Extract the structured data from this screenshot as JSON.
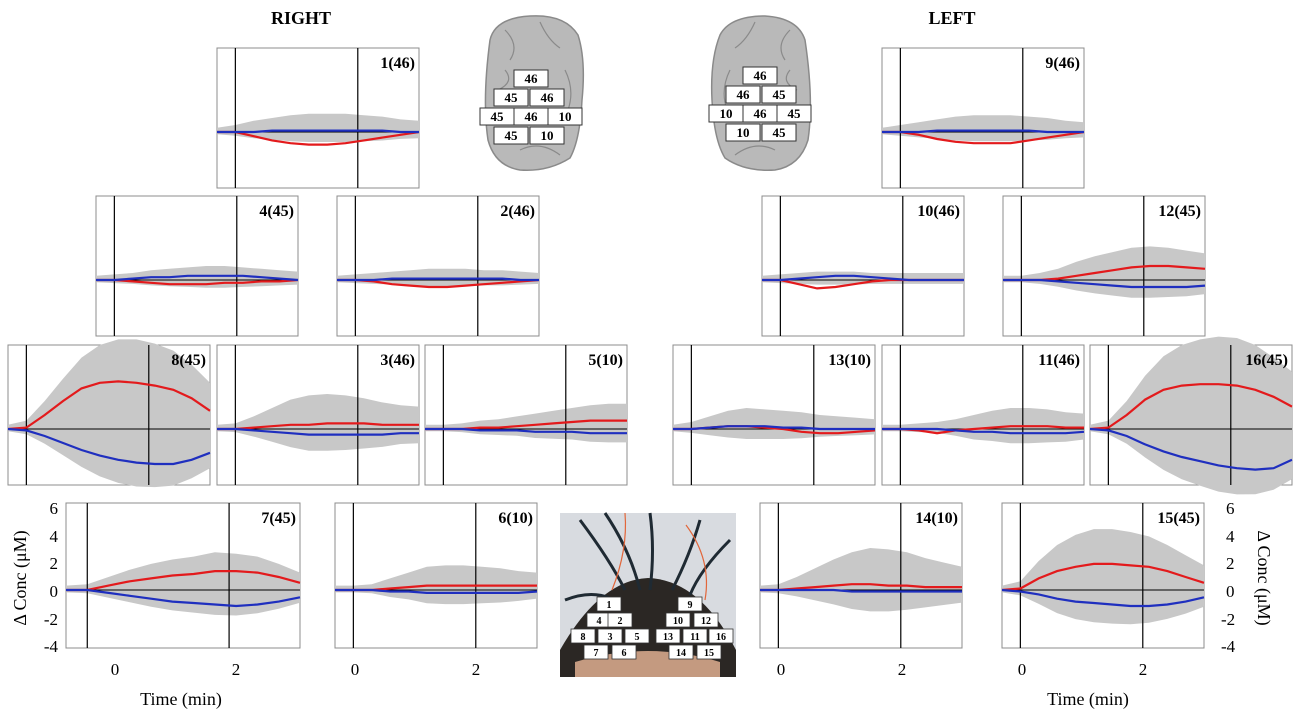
{
  "headers": {
    "right": "RIGHT",
    "left": "LEFT"
  },
  "axes": {
    "xlabel": "Time (min)",
    "ylabel": "Δ Conc (μM)",
    "xticks": [
      "0",
      "2"
    ],
    "yticks": [
      "6",
      "4",
      "2",
      "0",
      "-2",
      "-4"
    ],
    "xlim": [
      -0.3,
      3.0
    ],
    "ylim": [
      -4,
      6
    ]
  },
  "brain_right_labels": [
    "46",
    "45",
    "46",
    "45",
    "46",
    "10",
    "45",
    "10"
  ],
  "brain_left_labels": [
    "46",
    "46",
    "45",
    "10",
    "46",
    "45",
    "10",
    "45"
  ],
  "headset_labels": [
    "1",
    "9",
    "4",
    "2",
    "10",
    "12",
    "8",
    "3",
    "5",
    "13",
    "11",
    "16",
    "7",
    "6",
    "14",
    "15"
  ],
  "colors": {
    "hbo": "#e31a1c",
    "hbr": "#1f2fbf",
    "band": "#c8c8c8",
    "axis": "#000000"
  },
  "chart_data": {
    "type": "line",
    "x": [
      -0.3,
      0,
      0.3,
      0.6,
      0.9,
      1.2,
      1.5,
      1.8,
      2.1,
      2.4,
      2.7,
      3.0
    ],
    "panels": [
      {
        "title": "1(46)",
        "hbo": [
          0,
          0,
          -0.3,
          -0.6,
          -0.8,
          -0.9,
          -0.9,
          -0.8,
          -0.6,
          -0.4,
          -0.2,
          0
        ],
        "hbr": [
          0,
          0,
          0,
          0.1,
          0.1,
          0.1,
          0.1,
          0.1,
          0.1,
          0.1,
          0,
          0
        ],
        "band": [
          0.3,
          0.5,
          0.8,
          1.0,
          1.2,
          1.3,
          1.3,
          1.3,
          1.2,
          1.1,
          0.9,
          0.8
        ]
      },
      {
        "title": "9(46)",
        "hbo": [
          0,
          0,
          -0.2,
          -0.5,
          -0.7,
          -0.8,
          -0.8,
          -0.8,
          -0.6,
          -0.4,
          -0.2,
          0
        ],
        "hbr": [
          0,
          0,
          0,
          0.1,
          0.1,
          0.1,
          0.1,
          0.1,
          0.1,
          0,
          0,
          0
        ],
        "band": [
          0.3,
          0.5,
          0.7,
          0.9,
          1.1,
          1.2,
          1.2,
          1.2,
          1.1,
          1.0,
          0.8,
          0.7
        ]
      },
      {
        "title": "4(45)",
        "hbo": [
          0,
          0,
          -0.1,
          -0.2,
          -0.3,
          -0.3,
          -0.3,
          -0.2,
          -0.2,
          -0.1,
          -0.1,
          0
        ],
        "hbr": [
          0,
          0,
          0.1,
          0.2,
          0.2,
          0.3,
          0.3,
          0.3,
          0.3,
          0.2,
          0.1,
          0
        ],
        "band": [
          0.3,
          0.4,
          0.5,
          0.7,
          0.8,
          0.9,
          1.0,
          1.0,
          0.9,
          0.8,
          0.7,
          0.6
        ]
      },
      {
        "title": "2(46)",
        "hbo": [
          0,
          0,
          -0.1,
          -0.3,
          -0.4,
          -0.5,
          -0.5,
          -0.4,
          -0.3,
          -0.2,
          -0.1,
          0
        ],
        "hbr": [
          0,
          0,
          0,
          0.1,
          0.1,
          0.1,
          0.1,
          0.1,
          0.1,
          0.1,
          0,
          0
        ],
        "band": [
          0.3,
          0.4,
          0.5,
          0.6,
          0.7,
          0.8,
          0.8,
          0.8,
          0.7,
          0.7,
          0.6,
          0.5
        ]
      },
      {
        "title": "10(46)",
        "hbo": [
          0,
          0,
          -0.3,
          -0.6,
          -0.5,
          -0.3,
          -0.1,
          0,
          0,
          0,
          0,
          0
        ],
        "hbr": [
          0,
          0,
          0.1,
          0.2,
          0.3,
          0.3,
          0.2,
          0.1,
          0,
          0,
          0,
          0
        ],
        "band": [
          0.3,
          0.4,
          0.5,
          0.6,
          0.6,
          0.6,
          0.5,
          0.5,
          0.5,
          0.5,
          0.5,
          0.5
        ]
      },
      {
        "title": "12(45)",
        "hbo": [
          0,
          0,
          0,
          0.1,
          0.3,
          0.5,
          0.7,
          0.9,
          1.0,
          1.0,
          0.9,
          0.8
        ],
        "hbr": [
          0,
          0,
          0,
          -0.1,
          -0.2,
          -0.3,
          -0.4,
          -0.5,
          -0.5,
          -0.5,
          -0.5,
          -0.4
        ],
        "band": [
          0.3,
          0.3,
          0.5,
          0.7,
          1.0,
          1.2,
          1.3,
          1.4,
          1.4,
          1.3,
          1.2,
          1.1
        ]
      },
      {
        "title": "8(45)",
        "hbo": [
          0,
          0.1,
          1.0,
          2.0,
          2.9,
          3.3,
          3.4,
          3.3,
          3.1,
          2.8,
          2.2,
          1.3
        ],
        "hbr": [
          0,
          -0.1,
          -0.5,
          -1.0,
          -1.5,
          -1.9,
          -2.2,
          -2.4,
          -2.5,
          -2.5,
          -2.2,
          -1.7
        ],
        "band": [
          0.3,
          0.5,
          1.0,
          1.6,
          2.2,
          2.7,
          3.0,
          3.1,
          3.0,
          2.8,
          2.4,
          2.0
        ]
      },
      {
        "title": "3(46)",
        "hbo": [
          0,
          0,
          0.1,
          0.2,
          0.3,
          0.3,
          0.4,
          0.4,
          0.4,
          0.3,
          0.3,
          0.3
        ],
        "hbr": [
          0,
          0,
          -0.1,
          -0.2,
          -0.3,
          -0.4,
          -0.4,
          -0.4,
          -0.4,
          -0.4,
          -0.3,
          -0.3
        ],
        "band": [
          0.3,
          0.4,
          0.8,
          1.3,
          1.8,
          2.1,
          2.1,
          2.0,
          1.8,
          1.6,
          1.4,
          1.3
        ]
      },
      {
        "title": "5(10)",
        "hbo": [
          0,
          0,
          0,
          0.1,
          0.1,
          0.2,
          0.3,
          0.4,
          0.5,
          0.6,
          0.6,
          0.6
        ],
        "hbr": [
          0,
          0,
          0,
          -0.1,
          -0.1,
          -0.1,
          -0.2,
          -0.2,
          -0.2,
          -0.3,
          -0.3,
          -0.3
        ],
        "band": [
          0.3,
          0.3,
          0.4,
          0.5,
          0.6,
          0.7,
          0.8,
          0.9,
          1.0,
          1.1,
          1.2,
          1.2
        ]
      },
      {
        "title": "13(10)",
        "hbo": [
          0,
          0,
          0.1,
          0.2,
          0.2,
          0.1,
          0,
          -0.2,
          -0.3,
          -0.3,
          -0.2,
          -0.1
        ],
        "hbr": [
          0,
          0,
          0.1,
          0.2,
          0.2,
          0.2,
          0.1,
          0.1,
          0,
          0,
          0,
          0
        ],
        "band": [
          0.3,
          0.5,
          0.8,
          1.1,
          1.3,
          1.3,
          1.3,
          1.2,
          1.0,
          0.9,
          0.8,
          0.7
        ]
      },
      {
        "title": "11(46)",
        "hbo": [
          0,
          0,
          -0.1,
          -0.3,
          -0.1,
          0,
          0.1,
          0.2,
          0.2,
          0.2,
          0.1,
          0.1
        ],
        "hbr": [
          0,
          0,
          0,
          0,
          -0.1,
          -0.2,
          -0.2,
          -0.3,
          -0.3,
          -0.3,
          -0.3,
          -0.2
        ],
        "band": [
          0.3,
          0.3,
          0.4,
          0.5,
          0.7,
          1.0,
          1.2,
          1.3,
          1.3,
          1.2,
          1.1,
          1.0
        ]
      },
      {
        "title": "16(45)",
        "hbo": [
          0,
          0.1,
          1.0,
          2.1,
          2.8,
          3.1,
          3.2,
          3.2,
          3.1,
          2.8,
          2.3,
          1.6
        ],
        "hbr": [
          0,
          -0.1,
          -0.5,
          -1.1,
          -1.6,
          -2.0,
          -2.3,
          -2.6,
          -2.8,
          -2.9,
          -2.8,
          -2.2
        ],
        "band": [
          0.3,
          0.5,
          1.0,
          1.7,
          2.4,
          2.9,
          3.2,
          3.4,
          3.4,
          3.2,
          2.8,
          2.5
        ]
      },
      {
        "title": "7(45)",
        "hbo": [
          0,
          0,
          0.3,
          0.6,
          0.8,
          1.0,
          1.1,
          1.3,
          1.3,
          1.2,
          0.9,
          0.5
        ],
        "hbr": [
          0,
          0,
          -0.2,
          -0.4,
          -0.6,
          -0.8,
          -0.9,
          -1.0,
          -1.1,
          -1.0,
          -0.8,
          -0.5
        ],
        "band": [
          0.3,
          0.4,
          0.6,
          0.8,
          1.0,
          1.1,
          1.2,
          1.3,
          1.2,
          1.1,
          0.9,
          0.7
        ]
      },
      {
        "title": "6(10)",
        "hbo": [
          0,
          0,
          0,
          0.1,
          0.2,
          0.3,
          0.3,
          0.3,
          0.3,
          0.3,
          0.3,
          0.3
        ],
        "hbr": [
          0,
          0,
          0,
          -0.1,
          -0.1,
          -0.2,
          -0.2,
          -0.2,
          -0.2,
          -0.2,
          -0.2,
          -0.1
        ],
        "band": [
          0.3,
          0.3,
          0.4,
          0.7,
          1.0,
          1.3,
          1.4,
          1.4,
          1.3,
          1.2,
          1.0,
          0.9
        ]
      },
      {
        "title": "14(10)",
        "hbo": [
          0,
          0,
          0.1,
          0.2,
          0.3,
          0.4,
          0.4,
          0.3,
          0.3,
          0.2,
          0.2,
          0.2
        ],
        "hbr": [
          0,
          0,
          0,
          0,
          0,
          -0.1,
          -0.1,
          -0.1,
          -0.1,
          -0.1,
          -0.1,
          -0.1
        ],
        "band": [
          0.3,
          0.4,
          0.8,
          1.3,
          1.8,
          2.2,
          2.5,
          2.5,
          2.3,
          2.0,
          1.7,
          1.4
        ]
      },
      {
        "title": "15(45)",
        "hbo": [
          0,
          0.1,
          0.8,
          1.3,
          1.6,
          1.8,
          1.8,
          1.7,
          1.6,
          1.3,
          0.9,
          0.5
        ],
        "hbr": [
          0,
          -0.1,
          -0.3,
          -0.6,
          -0.8,
          -0.9,
          -1.0,
          -1.1,
          -1.1,
          -1.0,
          -0.8,
          -0.5
        ],
        "band": [
          0.3,
          0.5,
          1.2,
          1.8,
          2.2,
          2.4,
          2.4,
          2.3,
          2.1,
          1.8,
          1.5,
          1.2
        ]
      }
    ]
  }
}
